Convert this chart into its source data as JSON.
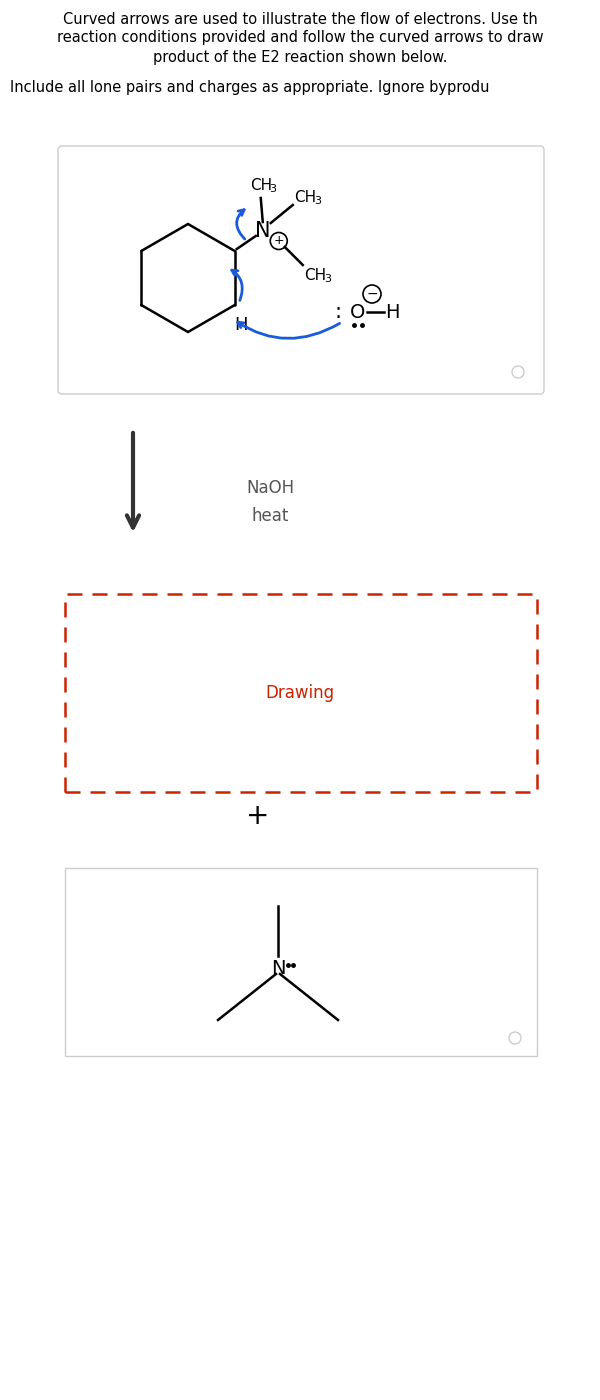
{
  "title_line1": "Curved arrows are used to illustrate the flow of electrons. Use th",
  "title_line2": "reaction conditions provided and follow the curved arrows to draw",
  "title_line3": "product of the E2 reaction shown below.",
  "subtitle": "Include all lone pairs and charges as appropriate. Ignore byprodu",
  "bg_color": "#ffffff",
  "text_color": "#000000",
  "dark_gray": "#333333",
  "mid_gray": "#555555",
  "light_gray": "#cccccc",
  "red_color": "#cc2200",
  "blue_color": "#1a5adc",
  "naoh_text": "NaOH",
  "heat_text": "heat",
  "drawing_text": "Drawing",
  "plus_text": "+"
}
